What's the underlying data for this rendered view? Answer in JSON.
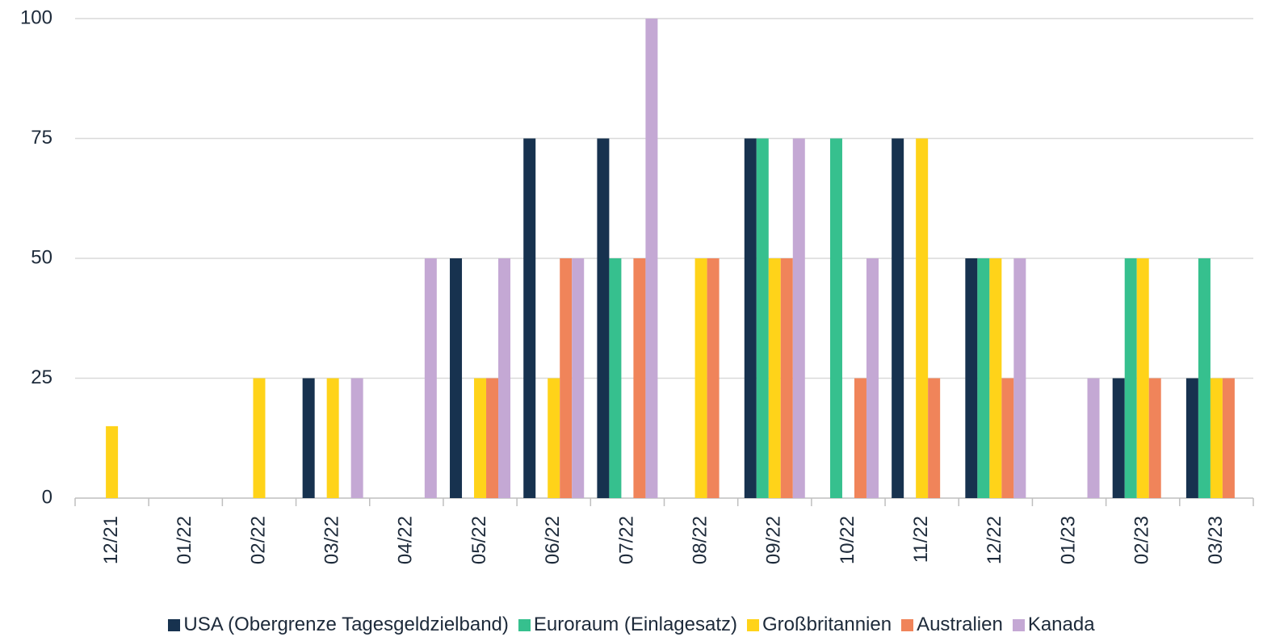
{
  "chart_data": {
    "type": "bar",
    "categories": [
      "12/21",
      "01/22",
      "02/22",
      "03/22",
      "04/22",
      "05/22",
      "06/22",
      "07/22",
      "08/22",
      "09/22",
      "10/22",
      "11/22",
      "12/22",
      "01/23",
      "02/23",
      "03/23"
    ],
    "series": [
      {
        "name": "USA (Obergrenze Tagesgeldzielband)",
        "color": "#17324f",
        "values": [
          0,
          0,
          0,
          25,
          0,
          50,
          75,
          75,
          0,
          75,
          0,
          75,
          50,
          0,
          25,
          25
        ]
      },
      {
        "name": "Euroraum (Einlagesatz)",
        "color": "#36c08e",
        "values": [
          0,
          0,
          0,
          0,
          0,
          0,
          0,
          50,
          0,
          75,
          75,
          0,
          50,
          0,
          50,
          50
        ]
      },
      {
        "name": "Großbritannien",
        "color": "#ffd319",
        "values": [
          15,
          0,
          25,
          25,
          0,
          25,
          25,
          0,
          50,
          50,
          0,
          75,
          50,
          0,
          50,
          25
        ]
      },
      {
        "name": "Australien",
        "color": "#f0845a",
        "values": [
          0,
          0,
          0,
          0,
          0,
          25,
          50,
          50,
          50,
          50,
          25,
          25,
          25,
          0,
          25,
          25
        ]
      },
      {
        "name": "Kanada",
        "color": "#c4a8d4",
        "values": [
          0,
          0,
          0,
          25,
          50,
          50,
          50,
          100,
          0,
          75,
          50,
          0,
          50,
          25,
          0,
          0
        ]
      }
    ],
    "ylim": [
      0,
      100
    ],
    "yticks": [
      0,
      25,
      50,
      75,
      100
    ],
    "grid": true,
    "legend": "bottom"
  }
}
